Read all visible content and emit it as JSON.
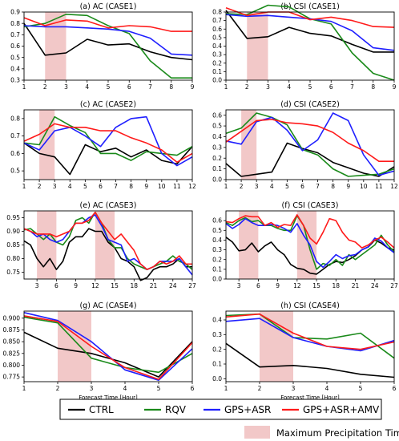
{
  "figure": {
    "xlabel": "Forecast Time [Hour]",
    "highlight_label": "Maximum Precipitation Time",
    "highlight_color": "#f2c8c8"
  },
  "legend": [
    {
      "name": "CTRL",
      "color": "#000000"
    },
    {
      "name": "RQV",
      "color": "#1a8a1a"
    },
    {
      "name": "GPS+ASR",
      "color": "#1f1fff"
    },
    {
      "name": "GPS+ASR+AMV",
      "color": "#ff1a1a"
    }
  ],
  "chart_data": [
    {
      "type": "line",
      "title": "(a) AC (CASE1)",
      "xlabel": "",
      "x": [
        1,
        2,
        3,
        4,
        5,
        6,
        7,
        8,
        9
      ],
      "xticks": [
        1,
        2,
        3,
        4,
        5,
        6,
        7,
        8,
        9
      ],
      "xlim": [
        1,
        9
      ],
      "ylim": [
        0.3,
        0.9
      ],
      "yticks": [
        0.3,
        0.4,
        0.5,
        0.6,
        0.7,
        0.8,
        0.9
      ],
      "yfmt": 1,
      "highlight": [
        [
          2,
          3
        ]
      ],
      "series": [
        {
          "name": "CTRL",
          "values": [
            0.8,
            0.52,
            0.54,
            0.66,
            0.61,
            0.62,
            0.55,
            0.5,
            0.48
          ]
        },
        {
          "name": "RQV",
          "values": [
            0.77,
            0.8,
            0.88,
            0.87,
            0.78,
            0.71,
            0.47,
            0.32,
            0.32
          ]
        },
        {
          "name": "GPS+ASR",
          "values": [
            0.78,
            0.77,
            0.77,
            0.76,
            0.75,
            0.73,
            0.67,
            0.53,
            0.52
          ]
        },
        {
          "name": "GPS+ASR+AMV",
          "values": [
            0.85,
            0.78,
            0.83,
            0.82,
            0.76,
            0.78,
            0.77,
            0.73,
            0.73
          ]
        }
      ]
    },
    {
      "type": "line",
      "title": "(b) CSI (CASE1)",
      "xlabel": "",
      "x": [
        1,
        2,
        3,
        4,
        5,
        6,
        7,
        8,
        9
      ],
      "xticks": [
        1,
        2,
        3,
        4,
        5,
        6,
        7,
        8,
        9
      ],
      "xlim": [
        1,
        9
      ],
      "ylim": [
        0,
        0.8
      ],
      "yticks": [
        0,
        0.1,
        0.2,
        0.3,
        0.4,
        0.5,
        0.6,
        0.7,
        0.8
      ],
      "yfmt": 1,
      "highlight": [
        [
          2,
          3
        ]
      ],
      "series": [
        {
          "name": "CTRL",
          "values": [
            0.82,
            0.49,
            0.51,
            0.62,
            0.55,
            0.52,
            0.42,
            0.33,
            0.33
          ]
        },
        {
          "name": "RQV",
          "values": [
            0.78,
            0.77,
            0.88,
            0.86,
            0.72,
            0.66,
            0.32,
            0.08,
            0.0
          ]
        },
        {
          "name": "GPS+ASR",
          "values": [
            0.77,
            0.75,
            0.76,
            0.74,
            0.72,
            0.69,
            0.58,
            0.38,
            0.35
          ]
        },
        {
          "name": "GPS+ASR+AMV",
          "values": [
            0.85,
            0.76,
            0.8,
            0.8,
            0.71,
            0.74,
            0.7,
            0.63,
            0.62
          ]
        }
      ]
    },
    {
      "type": "line",
      "title": "(c) AC (CASE2)",
      "xlabel": "",
      "x": [
        1,
        2,
        3,
        4,
        5,
        6,
        7,
        8,
        9,
        10,
        11,
        12
      ],
      "xticks": [
        1,
        2,
        3,
        4,
        5,
        6,
        7,
        8,
        9,
        10,
        11,
        12
      ],
      "xlim": [
        1,
        12
      ],
      "ylim": [
        0.45,
        0.85
      ],
      "yticks": [
        0.5,
        0.6,
        0.7,
        0.8
      ],
      "yfmt": 1,
      "highlight": [
        [
          2,
          3
        ]
      ],
      "series": [
        {
          "name": "CTRL",
          "values": [
            0.66,
            0.6,
            0.58,
            0.48,
            0.65,
            0.61,
            0.63,
            0.58,
            0.62,
            0.56,
            0.54,
            0.64
          ]
        },
        {
          "name": "RQV",
          "values": [
            0.66,
            0.65,
            0.81,
            0.76,
            0.72,
            0.6,
            0.6,
            0.56,
            0.61,
            0.6,
            0.59,
            0.64
          ]
        },
        {
          "name": "GPS+ASR",
          "values": [
            0.66,
            0.62,
            0.73,
            0.75,
            0.7,
            0.64,
            0.75,
            0.8,
            0.81,
            0.6,
            0.53,
            0.58
          ]
        },
        {
          "name": "GPS+ASR+AMV",
          "values": [
            0.67,
            0.71,
            0.77,
            0.75,
            0.75,
            0.73,
            0.73,
            0.69,
            0.66,
            0.62,
            0.55,
            0.6
          ]
        }
      ]
    },
    {
      "type": "line",
      "title": "(d) CSI (CASE2)",
      "xlabel": "",
      "x": [
        1,
        2,
        3,
        4,
        5,
        6,
        7,
        8,
        9,
        10,
        11,
        12
      ],
      "xticks": [
        1,
        2,
        3,
        4,
        5,
        6,
        7,
        8,
        9,
        10,
        11,
        12
      ],
      "xlim": [
        1,
        12
      ],
      "ylim": [
        0,
        0.65
      ],
      "yticks": [
        0,
        0.1,
        0.2,
        0.3,
        0.4,
        0.5,
        0.6
      ],
      "yfmt": 1,
      "highlight": [
        [
          2,
          3
        ]
      ],
      "series": [
        {
          "name": "CTRL",
          "values": [
            0.15,
            0.03,
            0.05,
            0.07,
            0.34,
            0.29,
            0.25,
            0.16,
            0.11,
            0.06,
            0.03,
            0.12
          ]
        },
        {
          "name": "RQV",
          "values": [
            0.43,
            0.48,
            0.62,
            0.58,
            0.51,
            0.28,
            0.23,
            0.1,
            0.03,
            0.04,
            0.05,
            0.1
          ]
        },
        {
          "name": "GPS+ASR",
          "values": [
            0.36,
            0.33,
            0.54,
            0.58,
            0.46,
            0.27,
            0.37,
            0.62,
            0.55,
            0.23,
            0.04,
            0.08
          ]
        },
        {
          "name": "GPS+ASR+AMV",
          "values": [
            0.35,
            0.45,
            0.55,
            0.56,
            0.53,
            0.52,
            0.5,
            0.44,
            0.34,
            0.27,
            0.17,
            0.17
          ]
        }
      ]
    },
    {
      "type": "line",
      "title": "(e) AC (CASE3)",
      "xlabel": "",
      "x": [
        1,
        2,
        3,
        4,
        5,
        6,
        7,
        8,
        9,
        10,
        11,
        12,
        13,
        14,
        15,
        16,
        17,
        18,
        19,
        20,
        21,
        22,
        23,
        24,
        25,
        26,
        27
      ],
      "xticks": [
        3,
        6,
        9,
        12,
        15,
        18,
        21,
        24,
        27
      ],
      "xlim": [
        1,
        27
      ],
      "ylim": [
        0.725,
        0.975
      ],
      "yticks": [
        0.75,
        0.8,
        0.85,
        0.9,
        0.95
      ],
      "yfmt": 2,
      "highlight": [
        [
          3,
          6
        ],
        [
          12,
          15
        ]
      ],
      "series": [
        {
          "name": "CTRL",
          "values": [
            0.865,
            0.85,
            0.8,
            0.77,
            0.8,
            0.76,
            0.79,
            0.86,
            0.88,
            0.88,
            0.91,
            0.9,
            0.9,
            0.86,
            0.84,
            0.8,
            0.79,
            0.77,
            0.72,
            0.73,
            0.76,
            0.77,
            0.77,
            0.78,
            0.8,
            0.77,
            0.77
          ]
        },
        {
          "name": "RQV",
          "values": [
            0.905,
            0.91,
            0.89,
            0.87,
            0.89,
            0.86,
            0.85,
            0.88,
            0.94,
            0.95,
            0.93,
            0.97,
            0.93,
            0.87,
            0.84,
            0.84,
            0.8,
            0.78,
            0.77,
            0.76,
            0.77,
            0.78,
            0.79,
            0.81,
            0.79,
            0.78,
            0.76
          ]
        },
        {
          "name": "GPS+ASR",
          "values": [
            0.91,
            0.9,
            0.88,
            0.89,
            0.87,
            0.86,
            0.87,
            0.9,
            0.93,
            0.93,
            0.95,
            0.96,
            0.92,
            0.87,
            0.86,
            0.85,
            0.79,
            0.8,
            0.78,
            0.76,
            0.77,
            0.79,
            0.79,
            0.79,
            0.8,
            0.77,
            0.74
          ]
        },
        {
          "name": "GPS+ASR+AMV",
          "values": [
            0.91,
            0.9,
            0.89,
            0.89,
            0.89,
            0.88,
            0.89,
            0.9,
            0.93,
            0.93,
            0.94,
            0.97,
            0.93,
            0.9,
            0.87,
            0.89,
            0.86,
            0.83,
            0.78,
            0.76,
            0.77,
            0.79,
            0.78,
            0.79,
            0.81,
            0.78,
            0.78
          ]
        }
      ]
    },
    {
      "type": "line",
      "title": "(f) CSI (CASE3)",
      "xlabel": "",
      "x": [
        1,
        2,
        3,
        4,
        5,
        6,
        7,
        8,
        9,
        10,
        11,
        12,
        13,
        14,
        15,
        16,
        17,
        18,
        19,
        20,
        21,
        22,
        23,
        24,
        25,
        26,
        27
      ],
      "xticks": [
        3,
        6,
        9,
        12,
        15,
        18,
        21,
        24,
        27
      ],
      "xlim": [
        1,
        27
      ],
      "ylim": [
        0,
        0.7
      ],
      "yticks": [
        0,
        0.1,
        0.2,
        0.3,
        0.4,
        0.5,
        0.6
      ],
      "yfmt": 1,
      "highlight": [
        [
          3,
          6
        ],
        [
          12,
          15
        ]
      ],
      "series": [
        {
          "name": "CTRL",
          "values": [
            0.43,
            0.38,
            0.29,
            0.3,
            0.37,
            0.28,
            0.34,
            0.38,
            0.3,
            0.25,
            0.15,
            0.11,
            0.1,
            0.06,
            0.05,
            0.1,
            0.15,
            0.18,
            0.17,
            0.2,
            0.24,
            0.3,
            0.33,
            0.4,
            0.37,
            0.32,
            0.3
          ]
        },
        {
          "name": "RQV",
          "values": [
            0.58,
            0.55,
            0.6,
            0.63,
            0.59,
            0.6,
            0.55,
            0.55,
            0.52,
            0.5,
            0.5,
            0.65,
            0.55,
            0.3,
            0.1,
            0.16,
            0.14,
            0.2,
            0.14,
            0.25,
            0.2,
            0.25,
            0.3,
            0.35,
            0.45,
            0.35,
            0.28
          ]
        },
        {
          "name": "GPS+ASR",
          "values": [
            0.57,
            0.52,
            0.56,
            0.62,
            0.58,
            0.55,
            0.55,
            0.56,
            0.55,
            0.52,
            0.48,
            0.57,
            0.45,
            0.35,
            0.18,
            0.12,
            0.18,
            0.25,
            0.21,
            0.24,
            0.25,
            0.3,
            0.33,
            0.42,
            0.39,
            0.32,
            0.27
          ]
        },
        {
          "name": "GPS+ASR+AMV",
          "values": [
            0.59,
            0.58,
            0.62,
            0.65,
            0.64,
            0.64,
            0.55,
            0.58,
            0.53,
            0.56,
            0.55,
            0.66,
            0.55,
            0.42,
            0.36,
            0.48,
            0.62,
            0.6,
            0.48,
            0.4,
            0.38,
            0.32,
            0.35,
            0.4,
            0.43,
            0.38,
            0.32
          ]
        }
      ]
    },
    {
      "type": "line",
      "title": "(g) AC (CASE4)",
      "xlabel": "Forecast Time [Hour]",
      "x": [
        1,
        2,
        3,
        4,
        5,
        6
      ],
      "xticks": [
        1,
        2,
        3,
        4,
        5,
        6
      ],
      "xlim": [
        1,
        6
      ],
      "ylim": [
        0.765,
        0.915
      ],
      "yticks": [
        0.775,
        0.8,
        0.825,
        0.85,
        0.875,
        0.9
      ],
      "yfmt": 3,
      "highlight": [
        [
          2,
          3
        ]
      ],
      "series": [
        {
          "name": "CTRL",
          "values": [
            0.87,
            0.836,
            0.825,
            0.805,
            0.775,
            0.85
          ]
        },
        {
          "name": "RQV",
          "values": [
            0.902,
            0.89,
            0.815,
            0.795,
            0.785,
            0.825
          ]
        },
        {
          "name": "GPS+ASR",
          "values": [
            0.912,
            0.895,
            0.85,
            0.79,
            0.768,
            0.835
          ]
        },
        {
          "name": "GPS+ASR+AMV",
          "values": [
            0.905,
            0.893,
            0.84,
            0.795,
            0.77,
            0.848
          ]
        }
      ]
    },
    {
      "type": "line",
      "title": "(h) CSI (CASE4)",
      "xlabel": "Forecast Time [Hour]",
      "x": [
        1,
        2,
        3,
        4,
        5,
        6
      ],
      "xticks": [
        1,
        2,
        3,
        4,
        5,
        6
      ],
      "xlim": [
        1,
        6
      ],
      "ylim": [
        -0.02,
        0.46
      ],
      "yticks": [
        0,
        0.1,
        0.2,
        0.3,
        0.4
      ],
      "yfmt": 1,
      "highlight": [
        [
          2,
          3
        ]
      ],
      "series": [
        {
          "name": "CTRL",
          "values": [
            0.24,
            0.08,
            0.09,
            0.07,
            0.03,
            0.01
          ]
        },
        {
          "name": "RQV",
          "values": [
            0.43,
            0.44,
            0.28,
            0.27,
            0.31,
            0.14
          ]
        },
        {
          "name": "GPS+ASR",
          "values": [
            0.39,
            0.41,
            0.28,
            0.22,
            0.19,
            0.26
          ]
        },
        {
          "name": "GPS+ASR+AMV",
          "values": [
            0.42,
            0.44,
            0.31,
            0.22,
            0.2,
            0.25
          ]
        }
      ]
    }
  ]
}
